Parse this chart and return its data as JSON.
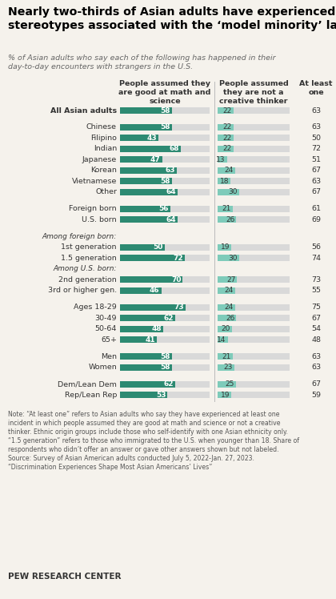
{
  "title": "Nearly two-thirds of Asian adults have experienced\nstereotypes associated with the ‘model minority’ label",
  "subtitle": "% of Asian adults who say each of the following has happened in their\nday-to-day encounters with strangers in the U.S.",
  "col1_header": "People assumed they\nare good at math and\nscience",
  "col2_header": "People assumed\nthey are not a\ncreative thinker",
  "col3_header": "At least\none",
  "note": "Note: “At least one” refers to Asian adults who say they have experienced at least one\nincident in which people assumed they are good at math and science or not a creative\nthinker. Ethnic origin groups include those who self-identify with one Asian ethnicity only.\n“1.5 generation” refers to those who immigrated to the U.S. when younger than 18. Share of\nrespondents who didn’t offer an answer or gave other answers shown but not labeled.\nSource: Survey of Asian American adults conducted July 5, 2022-Jan. 27, 2023.\n“Discrimination Experiences Shape Most Asian Americans’ Lives”",
  "branding": "PEW RESEARCH CENTER",
  "rows": [
    {
      "label": "All Asian adults",
      "val1": 58,
      "val2": 22,
      "val3": 63,
      "is_spacer": false,
      "is_header": false,
      "bold_label": true
    },
    {
      "label": "",
      "val1": null,
      "val2": null,
      "val3": null,
      "is_spacer": true,
      "is_header": false,
      "bold_label": false
    },
    {
      "label": "Chinese",
      "val1": 58,
      "val2": 22,
      "val3": 63,
      "is_spacer": false,
      "is_header": false,
      "bold_label": false
    },
    {
      "label": "Filipino",
      "val1": 43,
      "val2": 22,
      "val3": 50,
      "is_spacer": false,
      "is_header": false,
      "bold_label": false
    },
    {
      "label": "Indian",
      "val1": 68,
      "val2": 22,
      "val3": 72,
      "is_spacer": false,
      "is_header": false,
      "bold_label": false
    },
    {
      "label": "Japanese",
      "val1": 47,
      "val2": 13,
      "val3": 51,
      "is_spacer": false,
      "is_header": false,
      "bold_label": false
    },
    {
      "label": "Korean",
      "val1": 63,
      "val2": 24,
      "val3": 67,
      "is_spacer": false,
      "is_header": false,
      "bold_label": false
    },
    {
      "label": "Vietnamese",
      "val1": 58,
      "val2": 18,
      "val3": 63,
      "is_spacer": false,
      "is_header": false,
      "bold_label": false
    },
    {
      "label": "Other",
      "val1": 64,
      "val2": 30,
      "val3": 67,
      "is_spacer": false,
      "is_header": false,
      "bold_label": false
    },
    {
      "label": "",
      "val1": null,
      "val2": null,
      "val3": null,
      "is_spacer": true,
      "is_header": false,
      "bold_label": false
    },
    {
      "label": "Foreign born",
      "val1": 56,
      "val2": 21,
      "val3": 61,
      "is_spacer": false,
      "is_header": false,
      "bold_label": false
    },
    {
      "label": "U.S. born",
      "val1": 64,
      "val2": 26,
      "val3": 69,
      "is_spacer": false,
      "is_header": false,
      "bold_label": false
    },
    {
      "label": "",
      "val1": null,
      "val2": null,
      "val3": null,
      "is_spacer": true,
      "is_header": false,
      "bold_label": false
    },
    {
      "label": "Among foreign born:",
      "val1": null,
      "val2": null,
      "val3": null,
      "is_spacer": false,
      "is_header": true,
      "bold_label": false
    },
    {
      "label": "1st generation",
      "val1": 50,
      "val2": 19,
      "val3": 56,
      "is_spacer": false,
      "is_header": false,
      "bold_label": false
    },
    {
      "label": "1.5 generation",
      "val1": 72,
      "val2": 30,
      "val3": 74,
      "is_spacer": false,
      "is_header": false,
      "bold_label": false
    },
    {
      "label": "Among U.S. born:",
      "val1": null,
      "val2": null,
      "val3": null,
      "is_spacer": false,
      "is_header": true,
      "bold_label": false
    },
    {
      "label": "2nd generation",
      "val1": 70,
      "val2": 27,
      "val3": 73,
      "is_spacer": false,
      "is_header": false,
      "bold_label": false
    },
    {
      "label": "3rd or higher gen.",
      "val1": 46,
      "val2": 24,
      "val3": 55,
      "is_spacer": false,
      "is_header": false,
      "bold_label": false
    },
    {
      "label": "",
      "val1": null,
      "val2": null,
      "val3": null,
      "is_spacer": true,
      "is_header": false,
      "bold_label": false
    },
    {
      "label": "Ages 18-29",
      "val1": 73,
      "val2": 24,
      "val3": 75,
      "is_spacer": false,
      "is_header": false,
      "bold_label": false
    },
    {
      "label": "30-49",
      "val1": 62,
      "val2": 26,
      "val3": 67,
      "is_spacer": false,
      "is_header": false,
      "bold_label": false
    },
    {
      "label": "50-64",
      "val1": 48,
      "val2": 20,
      "val3": 54,
      "is_spacer": false,
      "is_header": false,
      "bold_label": false
    },
    {
      "label": "65+",
      "val1": 41,
      "val2": 14,
      "val3": 48,
      "is_spacer": false,
      "is_header": false,
      "bold_label": false
    },
    {
      "label": "",
      "val1": null,
      "val2": null,
      "val3": null,
      "is_spacer": true,
      "is_header": false,
      "bold_label": false
    },
    {
      "label": "Men",
      "val1": 58,
      "val2": 21,
      "val3": 63,
      "is_spacer": false,
      "is_header": false,
      "bold_label": false
    },
    {
      "label": "Women",
      "val1": 58,
      "val2": 23,
      "val3": 63,
      "is_spacer": false,
      "is_header": false,
      "bold_label": false
    },
    {
      "label": "",
      "val1": null,
      "val2": null,
      "val3": null,
      "is_spacer": true,
      "is_header": false,
      "bold_label": false
    },
    {
      "label": "Dem/Lean Dem",
      "val1": 62,
      "val2": 25,
      "val3": 67,
      "is_spacer": false,
      "is_header": false,
      "bold_label": false
    },
    {
      "label": "Rep/Lean Rep",
      "val1": 53,
      "val2": 19,
      "val3": 59,
      "is_spacer": false,
      "is_header": false,
      "bold_label": false
    }
  ],
  "bar_color1": "#2d8a72",
  "bar_color2": "#7ecbba",
  "bar_bg_color": "#d9d9d9",
  "bar_max": 100,
  "text_color": "#333333",
  "title_color": "#000000",
  "subtitle_color": "#666666",
  "note_color": "#555555",
  "bg_color": "#f5f2ec",
  "divider_color": "#bbbbbb"
}
